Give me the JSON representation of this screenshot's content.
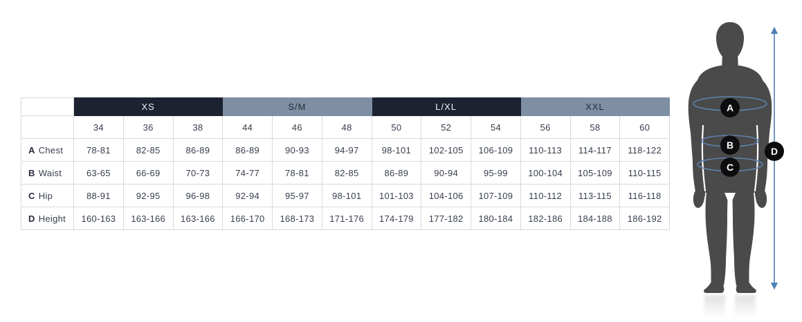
{
  "chart_data": {
    "type": "table",
    "column_groups": [
      {
        "label": "XS",
        "theme": "dark",
        "sizes": [
          "34",
          "36",
          "38"
        ]
      },
      {
        "label": "S/M",
        "theme": "light",
        "sizes": [
          "44",
          "46",
          "48"
        ]
      },
      {
        "label": "L/XL",
        "theme": "dark",
        "sizes": [
          "50",
          "52",
          "54"
        ]
      },
      {
        "label": "XXL",
        "theme": "light",
        "sizes": [
          "56",
          "58",
          "60"
        ]
      }
    ],
    "rows": [
      {
        "letter": "A",
        "label": "Chest",
        "values": [
          "78-81",
          "82-85",
          "86-89",
          "86-89",
          "90-93",
          "94-97",
          "98-101",
          "102-105",
          "106-109",
          "110-113",
          "114-117",
          "118-122"
        ]
      },
      {
        "letter": "B",
        "label": "Waist",
        "values": [
          "63-65",
          "66-69",
          "70-73",
          "74-77",
          "78-81",
          "82-85",
          "86-89",
          "90-94",
          "95-99",
          "100-104",
          "105-109",
          "110-115"
        ]
      },
      {
        "letter": "C",
        "label": "Hip",
        "values": [
          "88-91",
          "92-95",
          "96-98",
          "92-94",
          "95-97",
          "98-101",
          "101-103",
          "104-106",
          "107-109",
          "110-112",
          "113-115",
          "116-118"
        ]
      },
      {
        "letter": "D",
        "label": "Height",
        "values": [
          "160-163",
          "163-166",
          "163-166",
          "166-170",
          "168-173",
          "171-176",
          "174-179",
          "177-182",
          "180-184",
          "182-186",
          "184-188",
          "186-192"
        ]
      }
    ]
  },
  "figure": {
    "markers": [
      {
        "label": "A"
      },
      {
        "label": "B"
      },
      {
        "label": "C"
      },
      {
        "label": "D"
      }
    ]
  },
  "colors": {
    "header_dark": "#1d2230",
    "header_light": "#7e8ea3",
    "header_dark_text": "#eef1f5",
    "header_light_text": "#242b3a",
    "cell_text": "#363d4b",
    "table_border": "#d7d9dc",
    "silhouette": "#4a4a4a",
    "measure_line": "#5d82ad",
    "marker_bg": "#0d0d10",
    "marker_text": "#ffffff",
    "height_arrow": "#4d7fb5"
  }
}
